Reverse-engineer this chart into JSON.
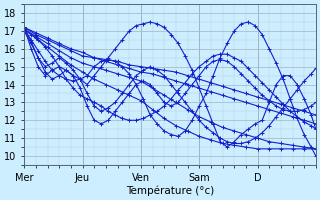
{
  "xlabel": "Température (°c)",
  "bg_color": "#cceeff",
  "grid_major_color": "#aabbcc",
  "grid_minor_color": "#bbccdd",
  "line_color": "#1122cc",
  "xlim": [
    0,
    125
  ],
  "ylim": [
    9.5,
    18.5
  ],
  "yticks": [
    10,
    11,
    12,
    13,
    14,
    15,
    16,
    17,
    18
  ],
  "day_positions": [
    0,
    25,
    50,
    75,
    100,
    125
  ],
  "day_labels": [
    "Mer",
    "Jeu",
    "Ven",
    "Sam",
    "D",
    ""
  ],
  "series": [
    {
      "pts": [
        [
          0,
          17.2
        ],
        [
          5,
          16.8
        ],
        [
          10,
          16.5
        ],
        [
          15,
          16.2
        ],
        [
          20,
          15.9
        ],
        [
          25,
          15.6
        ],
        [
          30,
          15.5
        ],
        [
          35,
          15.4
        ],
        [
          40,
          15.3
        ],
        [
          45,
          15.1
        ],
        [
          50,
          15.0
        ],
        [
          55,
          14.9
        ],
        [
          60,
          14.8
        ],
        [
          65,
          14.7
        ],
        [
          70,
          14.5
        ],
        [
          75,
          14.3
        ],
        [
          80,
          14.1
        ],
        [
          85,
          13.9
        ],
        [
          90,
          13.7
        ],
        [
          95,
          13.5
        ],
        [
          100,
          13.3
        ],
        [
          105,
          13.1
        ],
        [
          110,
          12.9
        ],
        [
          115,
          12.7
        ],
        [
          120,
          12.5
        ],
        [
          125,
          12.3
        ]
      ]
    },
    {
      "pts": [
        [
          0,
          17.2
        ],
        [
          5,
          16.9
        ],
        [
          10,
          16.6
        ],
        [
          15,
          16.3
        ],
        [
          20,
          16.0
        ],
        [
          25,
          15.8
        ],
        [
          30,
          15.5
        ],
        [
          35,
          15.3
        ],
        [
          40,
          15.1
        ],
        [
          45,
          14.9
        ],
        [
          50,
          14.7
        ],
        [
          55,
          14.6
        ],
        [
          60,
          14.4
        ],
        [
          65,
          14.2
        ],
        [
          70,
          14.0
        ],
        [
          75,
          13.8
        ],
        [
          80,
          13.6
        ],
        [
          85,
          13.4
        ],
        [
          90,
          13.2
        ],
        [
          95,
          13.0
        ],
        [
          100,
          12.8
        ],
        [
          105,
          12.6
        ],
        [
          110,
          12.4
        ],
        [
          115,
          12.2
        ],
        [
          120,
          12.0
        ],
        [
          125,
          11.8
        ]
      ]
    },
    {
      "pts": [
        [
          0,
          17.1
        ],
        [
          5,
          16.7
        ],
        [
          10,
          16.3
        ],
        [
          15,
          15.9
        ],
        [
          20,
          15.5
        ],
        [
          25,
          15.2
        ],
        [
          30,
          15.0
        ],
        [
          35,
          14.8
        ],
        [
          40,
          14.6
        ],
        [
          45,
          14.4
        ],
        [
          50,
          14.2
        ],
        [
          55,
          13.8
        ],
        [
          60,
          13.4
        ],
        [
          65,
          13.0
        ],
        [
          70,
          12.6
        ],
        [
          75,
          12.2
        ],
        [
          80,
          11.9
        ],
        [
          85,
          11.6
        ],
        [
          90,
          11.4
        ],
        [
          95,
          11.2
        ],
        [
          100,
          11.0
        ],
        [
          105,
          10.8
        ],
        [
          110,
          10.7
        ],
        [
          115,
          10.6
        ],
        [
          120,
          10.5
        ],
        [
          125,
          10.4
        ]
      ]
    },
    {
      "pts": [
        [
          0,
          17.1
        ],
        [
          5,
          16.6
        ],
        [
          10,
          16.1
        ],
        [
          15,
          15.6
        ],
        [
          20,
          15.1
        ],
        [
          25,
          14.7
        ],
        [
          30,
          14.3
        ],
        [
          35,
          14.0
        ],
        [
          40,
          13.7
        ],
        [
          45,
          13.4
        ],
        [
          50,
          13.1
        ],
        [
          55,
          12.6
        ],
        [
          60,
          12.1
        ],
        [
          65,
          11.7
        ],
        [
          70,
          11.4
        ],
        [
          75,
          11.1
        ],
        [
          80,
          10.9
        ],
        [
          85,
          10.7
        ],
        [
          90,
          10.6
        ],
        [
          95,
          10.5
        ],
        [
          100,
          10.4
        ],
        [
          105,
          10.4
        ],
        [
          110,
          10.4
        ],
        [
          115,
          10.4
        ],
        [
          120,
          10.4
        ],
        [
          125,
          10.4
        ]
      ]
    },
    {
      "pts": [
        [
          0,
          17.1
        ],
        [
          3,
          16.5
        ],
        [
          6,
          15.9
        ],
        [
          9,
          15.3
        ],
        [
          12,
          14.8
        ],
        [
          15,
          14.5
        ],
        [
          18,
          14.3
        ],
        [
          21,
          14.2
        ],
        [
          24,
          14.3
        ],
        [
          27,
          14.5
        ],
        [
          30,
          15.0
        ],
        [
          33,
          15.3
        ],
        [
          36,
          15.4
        ],
        [
          39,
          15.3
        ],
        [
          42,
          15.0
        ],
        [
          45,
          14.6
        ],
        [
          48,
          14.0
        ],
        [
          51,
          13.2
        ],
        [
          54,
          12.3
        ],
        [
          57,
          11.8
        ],
        [
          60,
          11.4
        ],
        [
          63,
          11.2
        ],
        [
          66,
          11.1
        ],
        [
          69,
          11.4
        ],
        [
          72,
          12.0
        ],
        [
          75,
          12.8
        ],
        [
          78,
          13.5
        ],
        [
          81,
          14.5
        ],
        [
          84,
          15.5
        ],
        [
          87,
          16.3
        ],
        [
          90,
          17.0
        ],
        [
          93,
          17.4
        ],
        [
          96,
          17.5
        ],
        [
          99,
          17.3
        ],
        [
          102,
          16.8
        ],
        [
          105,
          16.0
        ],
        [
          108,
          15.2
        ],
        [
          111,
          14.3
        ],
        [
          114,
          13.2
        ],
        [
          117,
          12.1
        ],
        [
          120,
          11.2
        ],
        [
          123,
          10.5
        ],
        [
          125,
          10.0
        ]
      ]
    },
    {
      "pts": [
        [
          0,
          17.2
        ],
        [
          3,
          16.4
        ],
        [
          6,
          15.5
        ],
        [
          9,
          14.7
        ],
        [
          12,
          14.3
        ],
        [
          15,
          14.5
        ],
        [
          18,
          14.8
        ],
        [
          21,
          14.5
        ],
        [
          24,
          13.8
        ],
        [
          27,
          12.8
        ],
        [
          30,
          12.0
        ],
        [
          33,
          11.8
        ],
        [
          36,
          12.0
        ],
        [
          39,
          12.5
        ],
        [
          42,
          13.0
        ],
        [
          45,
          13.5
        ],
        [
          48,
          14.0
        ],
        [
          51,
          14.2
        ],
        [
          54,
          14.0
        ],
        [
          57,
          13.5
        ],
        [
          60,
          13.0
        ],
        [
          63,
          12.8
        ],
        [
          66,
          13.0
        ],
        [
          69,
          13.5
        ],
        [
          72,
          14.0
        ],
        [
          75,
          14.5
        ],
        [
          78,
          15.0
        ],
        [
          81,
          15.3
        ],
        [
          84,
          15.4
        ],
        [
          87,
          15.3
        ],
        [
          90,
          15.0
        ],
        [
          93,
          14.6
        ],
        [
          96,
          14.2
        ],
        [
          99,
          13.8
        ],
        [
          102,
          13.4
        ],
        [
          105,
          13.1
        ],
        [
          108,
          12.8
        ],
        [
          111,
          12.6
        ],
        [
          114,
          12.5
        ],
        [
          117,
          12.5
        ],
        [
          120,
          12.6
        ],
        [
          123,
          12.8
        ],
        [
          125,
          13.0
        ]
      ]
    },
    {
      "pts": [
        [
          0,
          17.1
        ],
        [
          3,
          16.8
        ],
        [
          6,
          16.5
        ],
        [
          9,
          16.1
        ],
        [
          12,
          15.6
        ],
        [
          15,
          15.0
        ],
        [
          18,
          14.3
        ],
        [
          21,
          13.8
        ],
        [
          24,
          13.4
        ],
        [
          27,
          13.2
        ],
        [
          30,
          13.0
        ],
        [
          33,
          12.8
        ],
        [
          36,
          12.5
        ],
        [
          39,
          12.3
        ],
        [
          42,
          12.1
        ],
        [
          45,
          12.0
        ],
        [
          48,
          12.0
        ],
        [
          51,
          12.1
        ],
        [
          54,
          12.3
        ],
        [
          57,
          12.5
        ],
        [
          60,
          12.8
        ],
        [
          63,
          13.2
        ],
        [
          66,
          13.7
        ],
        [
          69,
          14.1
        ],
        [
          72,
          14.6
        ],
        [
          75,
          15.0
        ],
        [
          78,
          15.3
        ],
        [
          81,
          15.6
        ],
        [
          84,
          15.7
        ],
        [
          87,
          15.7
        ],
        [
          90,
          15.5
        ],
        [
          93,
          15.3
        ],
        [
          96,
          14.9
        ],
        [
          99,
          14.5
        ],
        [
          102,
          14.1
        ],
        [
          105,
          13.7
        ],
        [
          108,
          13.3
        ],
        [
          111,
          12.9
        ],
        [
          114,
          12.5
        ],
        [
          117,
          12.2
        ],
        [
          120,
          11.9
        ],
        [
          123,
          11.7
        ],
        [
          125,
          11.5
        ]
      ]
    },
    {
      "pts": [
        [
          0,
          17.0
        ],
        [
          3,
          16.3
        ],
        [
          6,
          15.5
        ],
        [
          9,
          15.0
        ],
        [
          12,
          15.2
        ],
        [
          15,
          15.5
        ],
        [
          18,
          15.2
        ],
        [
          21,
          14.8
        ],
        [
          24,
          14.3
        ],
        [
          27,
          13.5
        ],
        [
          30,
          12.8
        ],
        [
          33,
          12.5
        ],
        [
          36,
          12.7
        ],
        [
          39,
          13.0
        ],
        [
          42,
          13.5
        ],
        [
          45,
          14.0
        ],
        [
          48,
          14.5
        ],
        [
          51,
          14.8
        ],
        [
          54,
          15.0
        ],
        [
          57,
          14.8
        ],
        [
          60,
          14.5
        ],
        [
          63,
          14.0
        ],
        [
          66,
          13.5
        ],
        [
          69,
          13.0
        ],
        [
          72,
          12.5
        ],
        [
          75,
          12.0
        ],
        [
          78,
          11.6
        ],
        [
          81,
          11.3
        ],
        [
          84,
          11.0
        ],
        [
          87,
          10.8
        ],
        [
          90,
          10.7
        ],
        [
          93,
          10.7
        ],
        [
          96,
          10.8
        ],
        [
          99,
          11.0
        ],
        [
          102,
          11.3
        ],
        [
          105,
          11.7
        ],
        [
          108,
          12.2
        ],
        [
          111,
          12.7
        ],
        [
          114,
          13.2
        ],
        [
          117,
          13.7
        ],
        [
          120,
          14.2
        ],
        [
          123,
          14.6
        ],
        [
          125,
          14.9
        ]
      ]
    },
    {
      "pts": [
        [
          0,
          17.2
        ],
        [
          3,
          16.0
        ],
        [
          6,
          15.0
        ],
        [
          9,
          14.5
        ],
        [
          12,
          14.8
        ],
        [
          15,
          15.0
        ],
        [
          18,
          14.8
        ],
        [
          21,
          14.5
        ],
        [
          24,
          14.3
        ],
        [
          27,
          14.0
        ],
        [
          30,
          14.5
        ],
        [
          33,
          15.0
        ],
        [
          36,
          15.5
        ],
        [
          39,
          16.0
        ],
        [
          42,
          16.5
        ],
        [
          45,
          17.0
        ],
        [
          48,
          17.3
        ],
        [
          51,
          17.4
        ],
        [
          54,
          17.5
        ],
        [
          57,
          17.4
        ],
        [
          60,
          17.2
        ],
        [
          63,
          16.8
        ],
        [
          66,
          16.3
        ],
        [
          69,
          15.6
        ],
        [
          72,
          14.8
        ],
        [
          75,
          13.8
        ],
        [
          78,
          12.8
        ],
        [
          81,
          11.8
        ],
        [
          84,
          10.8
        ],
        [
          87,
          10.5
        ],
        [
          90,
          10.8
        ],
        [
          93,
          11.2
        ],
        [
          96,
          11.5
        ],
        [
          99,
          11.8
        ],
        [
          102,
          12.0
        ],
        [
          105,
          13.0
        ],
        [
          108,
          14.0
        ],
        [
          111,
          14.5
        ],
        [
          114,
          14.5
        ],
        [
          117,
          14.0
        ],
        [
          120,
          13.2
        ],
        [
          123,
          12.3
        ],
        [
          125,
          11.5
        ]
      ]
    }
  ]
}
